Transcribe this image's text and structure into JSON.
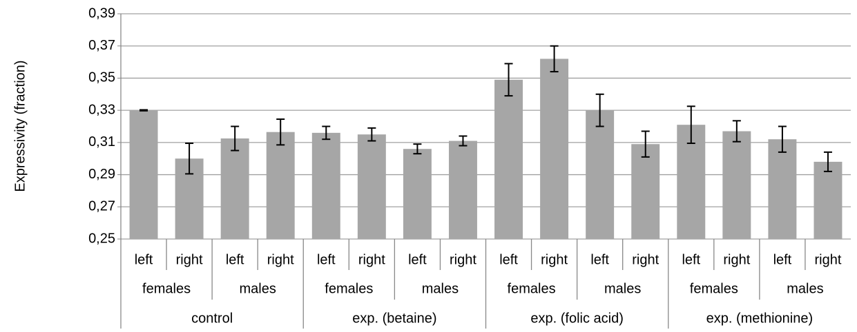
{
  "chart_data": {
    "type": "bar",
    "y_label": "Expressivity (fraction)",
    "categories": [
      "left",
      "right",
      "left",
      "right",
      "left",
      "right",
      "left",
      "right",
      "left",
      "right",
      "left",
      "right",
      "left",
      "right",
      "left",
      "right"
    ],
    "sex_groups": [
      "females",
      "males",
      "females",
      "males",
      "females",
      "males",
      "females",
      "males"
    ],
    "treatment_groups": [
      "control",
      "exp. (betaine)",
      "exp. (folic acid)",
      "exp. (methionine)"
    ],
    "values": [
      0.33,
      0.3,
      0.3125,
      0.3165,
      0.316,
      0.315,
      0.306,
      0.311,
      0.349,
      0.362,
      0.33,
      0.309,
      0.321,
      0.317,
      0.312,
      0.298
    ],
    "errors": [
      0.0003,
      0.0095,
      0.0075,
      0.008,
      0.004,
      0.004,
      0.003,
      0.003,
      0.01,
      0.008,
      0.01,
      0.008,
      0.0115,
      0.0065,
      0.008,
      0.006
    ],
    "color": "#a6a6a6",
    "ylim": [
      0.25,
      0.39
    ],
    "yticks": [
      {
        "value": 0.25,
        "label": "0,25"
      },
      {
        "value": 0.27,
        "label": "0,27"
      },
      {
        "value": 0.29,
        "label": "0,29"
      },
      {
        "value": 0.31,
        "label": "0,31"
      },
      {
        "value": 0.33,
        "label": "0,33"
      },
      {
        "value": 0.35,
        "label": "0,35"
      },
      {
        "value": 0.37,
        "label": "0,37"
      },
      {
        "value": 0.39,
        "label": "0,39"
      }
    ],
    "grid": true
  }
}
